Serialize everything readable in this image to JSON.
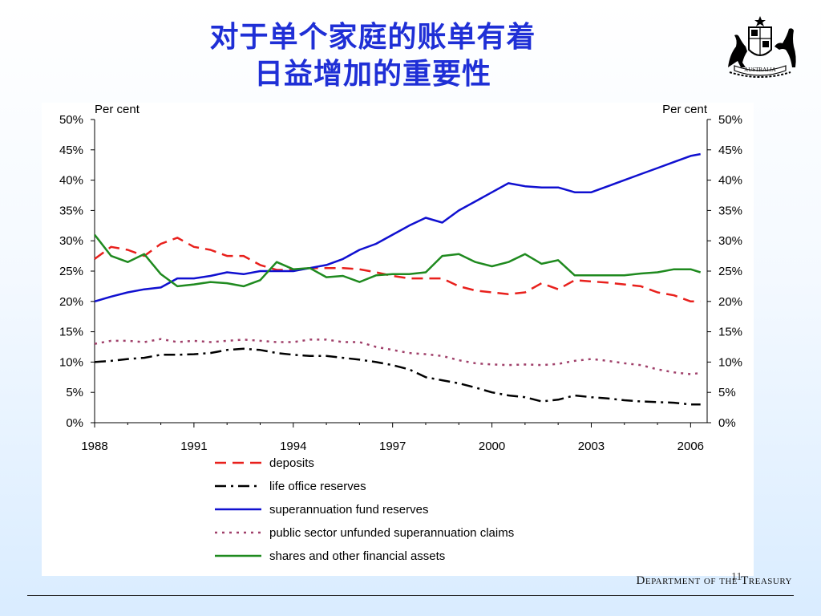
{
  "slide": {
    "title_line1": "对于单个家庭的账单有着",
    "title_line2": "日益增加的重要性",
    "crest_label": "AUSTRALIA",
    "footer": "Department of the Treasury",
    "page_number": "11"
  },
  "colors": {
    "title": "#1f2fd6",
    "deposits": "#e8201c",
    "life_office": "#000000",
    "superannuation": "#1010d0",
    "public_sector": "#a0406a",
    "shares": "#1f8a1f"
  },
  "chart_data": {
    "type": "line",
    "ylabel_left": "Per cent",
    "ylabel_right": "Per cent",
    "xlim": [
      1988,
      2006.5
    ],
    "ylim": [
      0,
      50
    ],
    "x_ticks": [
      "1988",
      "1991",
      "1994",
      "1997",
      "2000",
      "2003",
      "2006"
    ],
    "y_ticks": [
      "0%",
      "5%",
      "10%",
      "15%",
      "20%",
      "25%",
      "30%",
      "35%",
      "40%",
      "45%",
      "50%"
    ],
    "grid": false,
    "legend_position": "bottom",
    "series": [
      {
        "name": "deposits",
        "style": "dash",
        "color": "#e8201c",
        "x": [
          1988,
          1988.5,
          1989,
          1989.5,
          1990,
          1990.5,
          1991,
          1991.5,
          1992,
          1992.5,
          1993,
          1993.5,
          1994,
          1994.5,
          1995,
          1995.5,
          1996,
          1996.5,
          1997,
          1997.5,
          1998,
          1998.5,
          1999,
          1999.5,
          2000,
          2000.5,
          2001,
          2001.5,
          2002,
          2002.5,
          2003,
          2003.5,
          2004,
          2004.5,
          2005,
          2005.5,
          2006,
          2006.3
        ],
        "values": [
          27,
          29,
          28.5,
          27.5,
          29.5,
          30.5,
          29,
          28.5,
          27.5,
          27.5,
          26,
          25.2,
          25.2,
          25.5,
          25.5,
          25.5,
          25.3,
          24.8,
          24.2,
          23.8,
          23.8,
          23.8,
          22.5,
          21.8,
          21.5,
          21.2,
          21.5,
          23,
          22,
          23.5,
          23.3,
          23.1,
          22.8,
          22.5,
          21.5,
          21,
          20,
          20
        ]
      },
      {
        "name": "life office reserves",
        "style": "dashdot",
        "color": "#000000",
        "x": [
          1988,
          1988.5,
          1989,
          1989.5,
          1990,
          1990.5,
          1991,
          1991.5,
          1992,
          1992.5,
          1993,
          1993.5,
          1994,
          1994.5,
          1995,
          1995.5,
          1996,
          1996.5,
          1997,
          1997.5,
          1998,
          1998.5,
          1999,
          1999.5,
          2000,
          2000.5,
          2001,
          2001.5,
          2002,
          2002.5,
          2003,
          2003.5,
          2004,
          2004.5,
          2005,
          2005.5,
          2006,
          2006.3
        ],
        "values": [
          10,
          10.2,
          10.5,
          10.7,
          11.2,
          11.2,
          11.3,
          11.5,
          12,
          12.2,
          12,
          11.5,
          11.2,
          11,
          11,
          10.7,
          10.4,
          10,
          9.5,
          8.8,
          7.5,
          7,
          6.5,
          5.8,
          5,
          4.5,
          4.2,
          3.5,
          3.8,
          4.5,
          4.2,
          4,
          3.7,
          3.5,
          3.4,
          3.3,
          3,
          3
        ]
      },
      {
        "name": "superannuation fund reserves",
        "style": "solid",
        "color": "#1010d0",
        "x": [
          1988,
          1988.5,
          1989,
          1989.5,
          1990,
          1990.5,
          1991,
          1991.5,
          1992,
          1992.5,
          1993,
          1993.5,
          1994,
          1994.5,
          1995,
          1995.5,
          1996,
          1996.5,
          1997,
          1997.5,
          1998,
          1998.5,
          1999,
          1999.5,
          2000,
          2000.5,
          2001,
          2001.5,
          2002,
          2002.5,
          2003,
          2003.5,
          2004,
          2004.5,
          2005,
          2005.5,
          2006,
          2006.3
        ],
        "values": [
          20,
          20.8,
          21.5,
          22,
          22.3,
          23.8,
          23.8,
          24.2,
          24.8,
          24.5,
          25,
          25,
          25,
          25.5,
          26,
          27,
          28.5,
          29.5,
          31,
          32.5,
          33.8,
          33,
          35,
          36.5,
          38,
          39.5,
          39,
          38.8,
          38.8,
          38,
          38,
          39,
          40,
          41,
          42,
          43,
          44,
          44.3
        ]
      },
      {
        "name": "public sector unfunded superannuation claims",
        "style": "dot",
        "color": "#a0406a",
        "x": [
          1988,
          1988.5,
          1989,
          1989.5,
          1990,
          1990.5,
          1991,
          1991.5,
          1992,
          1992.5,
          1993,
          1993.5,
          1994,
          1994.5,
          1995,
          1995.5,
          1996,
          1996.5,
          1997,
          1997.5,
          1998,
          1998.5,
          1999,
          1999.5,
          2000,
          2000.5,
          2001,
          2001.5,
          2002,
          2002.5,
          2003,
          2003.5,
          2004,
          2004.5,
          2005,
          2005.5,
          2006,
          2006.3
        ],
        "values": [
          13,
          13.5,
          13.5,
          13.3,
          13.8,
          13.3,
          13.5,
          13.3,
          13.5,
          13.7,
          13.5,
          13.3,
          13.3,
          13.7,
          13.7,
          13.3,
          13.3,
          12.5,
          12,
          11.5,
          11.3,
          11,
          10.3,
          9.8,
          9.6,
          9.5,
          9.6,
          9.5,
          9.7,
          10.2,
          10.5,
          10.2,
          9.8,
          9.5,
          8.8,
          8.3,
          8,
          8.2
        ]
      },
      {
        "name": "shares and other financial assets",
        "style": "solid",
        "color": "#1f8a1f",
        "x": [
          1988,
          1988.5,
          1989,
          1989.5,
          1990,
          1990.5,
          1991,
          1991.5,
          1992,
          1992.5,
          1993,
          1993.5,
          1994,
          1994.5,
          1995,
          1995.5,
          1996,
          1996.5,
          1997,
          1997.5,
          1998,
          1998.5,
          1999,
          1999.5,
          2000,
          2000.5,
          2001,
          2001.5,
          2002,
          2002.5,
          2003,
          2003.5,
          2004,
          2004.5,
          2005,
          2005.5,
          2006,
          2006.3
        ],
        "values": [
          31,
          27.5,
          26.5,
          27.8,
          24.5,
          22.5,
          22.8,
          23.2,
          23,
          22.5,
          23.5,
          26.5,
          25.3,
          25.5,
          24,
          24.2,
          23.2,
          24.3,
          24.5,
          24.5,
          24.8,
          27.5,
          27.8,
          26.5,
          25.8,
          26.5,
          27.8,
          26.2,
          26.8,
          24.3,
          24.3,
          24.3,
          24.3,
          24.6,
          24.8,
          25.3,
          25.3,
          24.8
        ]
      }
    ]
  }
}
